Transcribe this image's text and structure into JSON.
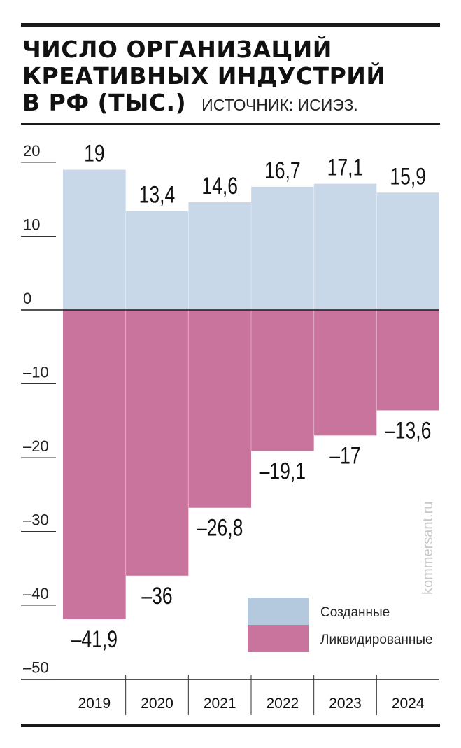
{
  "header": {
    "title_lines": [
      "ЧИСЛО ОРГАНИЗАЦИЙ",
      "КРЕАТИВНЫХ ИНДУСТРИЙ",
      "В РФ (ТЫС.)"
    ],
    "source": "ИСТОЧНИК: ИСИЭЗ."
  },
  "watermark": "kommersant.ru",
  "colors": {
    "created": "#c8d8e8",
    "liquidated": "#c8749c",
    "legend_created": "#b4c9de",
    "axis": "#1a1a1a"
  },
  "chart_data": {
    "type": "bar",
    "categories": [
      "2019",
      "2020",
      "2021",
      "2022",
      "2023",
      "2024"
    ],
    "series": [
      {
        "name": "Созданные",
        "values": [
          19,
          13.4,
          14.6,
          16.7,
          17.1,
          15.9
        ],
        "labels": [
          "19",
          "13,4",
          "14,6",
          "16,7",
          "17,1",
          "15,9"
        ]
      },
      {
        "name": "Ликвидированные",
        "values": [
          -41.9,
          -36,
          -26.8,
          -19.1,
          -17,
          -13.6
        ],
        "labels": [
          "–41,9",
          "–36",
          "–26,8",
          "–19,1",
          "–17",
          "–13,6"
        ]
      }
    ],
    "yticks": [
      "20",
      "10",
      "0",
      "–10",
      "–20",
      "–30",
      "–40",
      "–50"
    ],
    "ylim": [
      -50,
      20
    ],
    "grid": false,
    "legend_position": "bottom-right"
  }
}
